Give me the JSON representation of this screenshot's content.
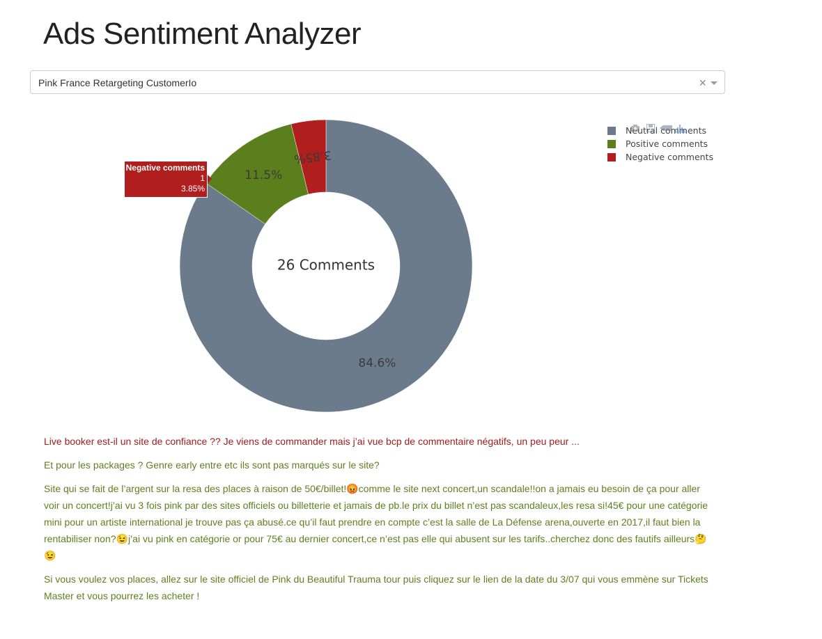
{
  "page": {
    "title": "Ads Sentiment Analyzer"
  },
  "campaign_select": {
    "value": "Pink France Retargeting CustomerIo",
    "clear_label": "×"
  },
  "chart_data": {
    "type": "pie",
    "hole": true,
    "center_label": "26 Comments",
    "slices": [
      {
        "name": "Neutral comments",
        "value": 22,
        "percent_label": "84.6%",
        "color": "#6b7b8c"
      },
      {
        "name": "Positive comments",
        "value": 3,
        "percent_label": "11.5%",
        "color": "#5c7f1e"
      },
      {
        "name": "Negative comments",
        "value": 1,
        "percent_label": "3.85%",
        "color": "#b01e1e"
      }
    ],
    "legend_position": "top-right",
    "hover": {
      "name": "Negative comments",
      "value": "1",
      "percent": "3.85%"
    }
  },
  "legend": {
    "items": [
      {
        "label": "Neutral comments",
        "color": "#6b7b8c"
      },
      {
        "label": "Positive comments",
        "color": "#5c7f1e"
      },
      {
        "label": "Negative comments",
        "color": "#b01e1e"
      }
    ]
  },
  "modebar": {
    "icons": [
      "camera-icon",
      "save-icon",
      "tag-icon",
      "plotly-logo-icon"
    ]
  },
  "comments": [
    {
      "sentiment": "negative",
      "text": "Live booker est-il un site de confiance ?? Je viens de commander mais j’ai vue bcp de commentaire négatifs, un peu peur ..."
    },
    {
      "sentiment": "positive",
      "text": "Et pour les packages ? Genre early entre etc ils sont pas marqués sur le site?"
    },
    {
      "sentiment": "positive",
      "text": "Site qui se fait de l’argent sur la resa des places à raison de 50€/billet!😡comme le site next concert,un scandale!!on a jamais eu besoin de ça pour aller voir un concert!j’ai vu 3 fois pink par des sites officiels ou billetterie et jamais de pb.le prix du billet n’est pas scandaleux,les resa si!45€ pour une catégorie mini pour un artiste international je trouve pas ça abusé.ce qu’il faut prendre en compte c’est la salle de La Défense arena,ouverte en 2017,il faut bien la rentabiliser non?😉j’ai vu pink en catégorie or pour 75€ au dernier concert,ce n’est pas elle qui abusent sur les tarifs..cherchez donc des fautifs ailleurs🤔😉"
    },
    {
      "sentiment": "positive",
      "text": "Si vous voulez vos places, allez sur le site officiel de Pink du Beautiful Trauma tour puis cliquez sur le lien de la date du 3/07 qui vous emmène sur Tickets Master et vous pourrez les acheter !"
    }
  ]
}
